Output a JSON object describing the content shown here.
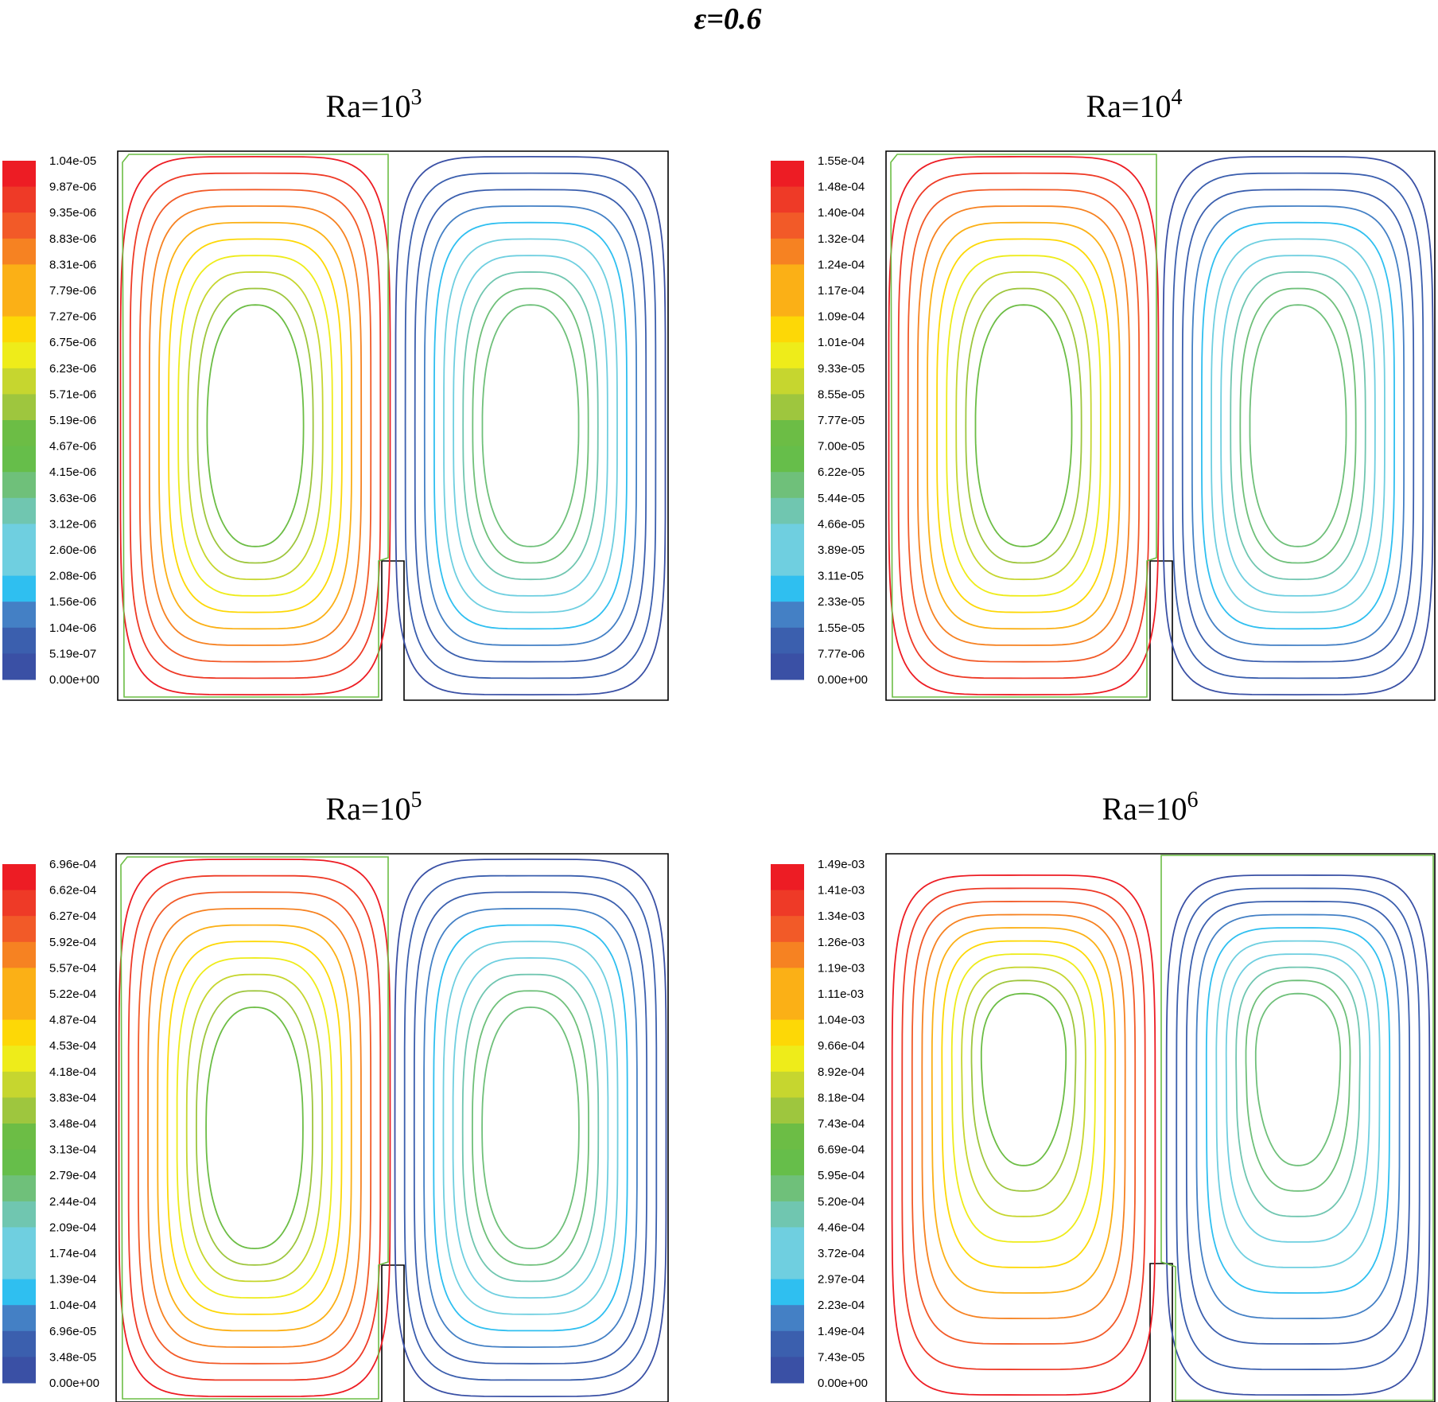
{
  "figure": {
    "title": "ε=0.6"
  },
  "colormap": [
    "#3a50a5",
    "#3b5fae",
    "#4480c5",
    "#2fbff0",
    "#6fcfe0",
    "#70c6b0",
    "#6fc07a",
    "#66be4a",
    "#6cbd45",
    "#9ec63e",
    "#c6d62f",
    "#eeec1a",
    "#fdd806",
    "#fbb016",
    "#f68222",
    "#f25a28",
    "#ee3a27",
    "#ed1c24"
  ],
  "chart_data": [
    {
      "type": "contour",
      "title": "Ra=10",
      "title_exp": "3",
      "levels": [
        "1.04e-05",
        "9.87e-06",
        "9.35e-06",
        "8.83e-06",
        "8.31e-06",
        "7.79e-06",
        "7.27e-06",
        "6.75e-06",
        "6.23e-06",
        "5.71e-06",
        "5.19e-06",
        "4.67e-06",
        "4.15e-06",
        "3.63e-06",
        "3.12e-06",
        "2.60e-06",
        "2.08e-06",
        "1.56e-06",
        "1.04e-06",
        "5.19e-07",
        "0.00e+00"
      ],
      "pattern": "symmetric"
    },
    {
      "type": "contour",
      "title": "Ra=10",
      "title_exp": "4",
      "levels": [
        "1.55e-04",
        "1.48e-04",
        "1.40e-04",
        "1.32e-04",
        "1.24e-04",
        "1.17e-04",
        "1.09e-04",
        "1.01e-04",
        "9.33e-05",
        "8.55e-05",
        "7.77e-05",
        "7.00e-05",
        "6.22e-05",
        "5.44e-05",
        "4.66e-05",
        "3.89e-05",
        "3.11e-05",
        "2.33e-05",
        "1.55e-05",
        "7.77e-06",
        "0.00e+00"
      ],
      "pattern": "symmetric"
    },
    {
      "type": "contour",
      "title": "Ra=10",
      "title_exp": "5",
      "levels": [
        "6.96e-04",
        "6.62e-04",
        "6.27e-04",
        "5.92e-04",
        "5.57e-04",
        "5.22e-04",
        "4.87e-04",
        "4.53e-04",
        "4.18e-04",
        "3.83e-04",
        "3.48e-04",
        "3.13e-04",
        "2.79e-04",
        "2.44e-04",
        "2.09e-04",
        "1.74e-04",
        "1.39e-04",
        "1.04e-04",
        "6.96e-05",
        "3.48e-05",
        "0.00e+00"
      ],
      "pattern": "symmetric"
    },
    {
      "type": "contour",
      "title": "Ra=10",
      "title_exp": "6",
      "levels": [
        "1.49e-03",
        "1.41e-03",
        "1.34e-03",
        "1.26e-03",
        "1.19e-03",
        "1.11e-03",
        "1.04e-03",
        "9.66e-04",
        "8.92e-04",
        "8.18e-04",
        "7.43e-04",
        "6.69e-04",
        "5.95e-04",
        "5.20e-04",
        "4.46e-04",
        "3.72e-04",
        "2.97e-04",
        "2.23e-04",
        "1.49e-04",
        "7.43e-05",
        "0.00e+00"
      ],
      "pattern": "teardrop"
    }
  ]
}
